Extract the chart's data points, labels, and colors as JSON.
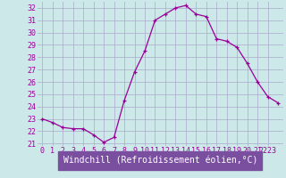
{
  "x": [
    0,
    1,
    2,
    3,
    4,
    5,
    6,
    7,
    8,
    9,
    10,
    11,
    12,
    13,
    14,
    15,
    16,
    17,
    18,
    19,
    20,
    21,
    22,
    23
  ],
  "y": [
    23.0,
    22.7,
    22.3,
    22.2,
    22.2,
    21.7,
    21.1,
    21.5,
    24.5,
    26.8,
    28.5,
    31.0,
    31.5,
    32.0,
    32.2,
    31.5,
    31.3,
    29.5,
    29.3,
    28.8,
    27.5,
    26.0,
    24.8,
    24.3
  ],
  "line_color": "#990099",
  "marker": "+",
  "marker_size": 3,
  "bg_color": "#cce8e8",
  "grid_color": "#aaaacc",
  "xlabel": "Windchill (Refroidissement éolien,°C)",
  "xlabel_color": "#990099",
  "xlabel_fontsize": 7,
  "tick_color": "#990099",
  "tick_fontsize": 6,
  "ylim_min": 20.8,
  "ylim_max": 32.5,
  "yticks": [
    21,
    22,
    23,
    24,
    25,
    26,
    27,
    28,
    29,
    30,
    31,
    32
  ],
  "xlim_min": -0.5,
  "xlim_max": 23.5,
  "xticks": [
    0,
    1,
    2,
    3,
    4,
    5,
    6,
    7,
    8,
    9,
    10,
    11,
    12,
    13,
    14,
    15,
    16,
    17,
    18,
    19,
    20,
    21,
    22
  ],
  "xtick_labels": [
    "0",
    "1",
    "2",
    "3",
    "4",
    "5",
    "6",
    "7",
    "8",
    "9",
    "10",
    "11",
    "12",
    "13",
    "14",
    "15",
    "16",
    "17",
    "18",
    "19",
    "20",
    "21",
    "2223"
  ],
  "bottom_label_bg": "#7b4fa0",
  "bottom_label_fg": "#ffffff"
}
